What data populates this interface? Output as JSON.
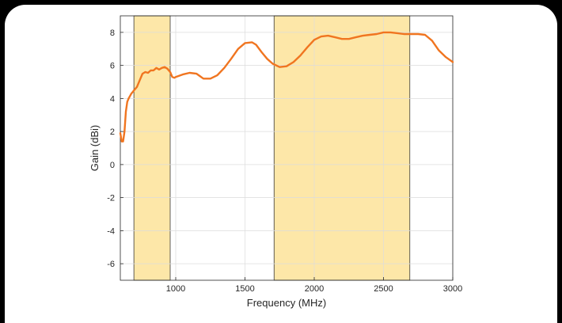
{
  "chart_data": {
    "type": "line",
    "title": "",
    "xlabel": "Frequency (MHz)",
    "ylabel": "Gain (dBi)",
    "xlim": [
      600,
      3000
    ],
    "ylim": [
      -7,
      9
    ],
    "x_ticks": [
      1000,
      1500,
      2000,
      2500,
      3000
    ],
    "y_ticks": [
      -6,
      -4,
      -2,
      0,
      2,
      4,
      6,
      8
    ],
    "grid": true,
    "line_color": "#f07520",
    "band_fill_color": "#fde7a8",
    "band_edge_color": "#3a3a3a",
    "bands": [
      {
        "x_start": 698,
        "x_end": 960
      },
      {
        "x_start": 1710,
        "x_end": 2690
      }
    ],
    "series": [
      {
        "x": [
          600,
          610,
          620,
          630,
          640,
          650,
          660,
          670,
          680,
          690,
          700,
          720,
          740,
          760,
          780,
          800,
          820,
          840,
          860,
          880,
          900,
          920,
          940,
          960,
          975,
          990,
          1000,
          1050,
          1100,
          1150,
          1200,
          1250,
          1300,
          1350,
          1400,
          1450,
          1500,
          1550,
          1580,
          1620,
          1660,
          1700,
          1750,
          1800,
          1850,
          1900,
          1950,
          2000,
          2050,
          2100,
          2150,
          2200,
          2250,
          2300,
          2350,
          2400,
          2450,
          2500,
          2550,
          2600,
          2650,
          2700,
          2750,
          2800,
          2850,
          2900,
          2950,
          3000
        ],
        "y": [
          1.9,
          1.4,
          1.4,
          2.0,
          3.2,
          3.8,
          4.0,
          4.15,
          4.3,
          4.4,
          4.5,
          4.7,
          5.1,
          5.5,
          5.6,
          5.55,
          5.7,
          5.7,
          5.85,
          5.75,
          5.85,
          5.9,
          5.8,
          5.6,
          5.3,
          5.25,
          5.3,
          5.45,
          5.55,
          5.5,
          5.2,
          5.2,
          5.4,
          5.85,
          6.4,
          7.0,
          7.35,
          7.4,
          7.25,
          6.8,
          6.4,
          6.1,
          5.9,
          5.95,
          6.2,
          6.6,
          7.1,
          7.55,
          7.75,
          7.8,
          7.7,
          7.6,
          7.6,
          7.7,
          7.8,
          7.85,
          7.9,
          8.0,
          8.0,
          7.95,
          7.9,
          7.9,
          7.9,
          7.85,
          7.5,
          6.9,
          6.5,
          6.2
        ]
      }
    ]
  }
}
